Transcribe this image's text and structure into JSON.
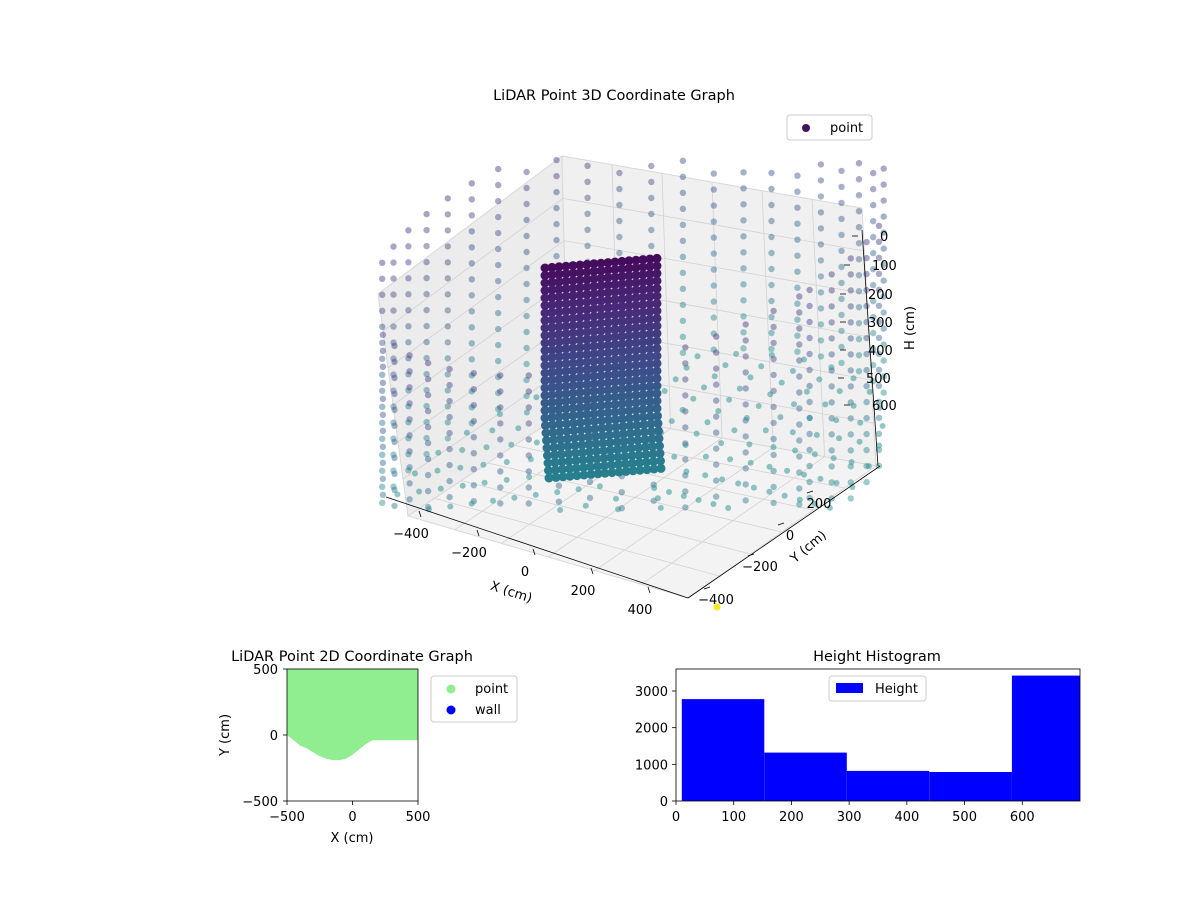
{
  "figure": {
    "colors": {
      "point_colormap": "viridis",
      "point_2d": "#90ee90",
      "wall": "#0000ff",
      "histogram": "#0000ff"
    }
  },
  "chart_data": [
    {
      "type": "scatter3d",
      "title": "LiDAR Point 3D Coordinate Graph",
      "xlabel": "X (cm)",
      "ylabel": "Y (cm)",
      "zlabel": "H (cm)",
      "xticks": [
        "−400",
        "−200",
        "0",
        "200",
        "400"
      ],
      "yticks": [
        "−400",
        "−200",
        "0",
        "200"
      ],
      "zticks": [
        "0",
        "100",
        "200",
        "300",
        "400",
        "500",
        "600"
      ],
      "z_inverted": true,
      "legend": {
        "entries": [
          "point"
        ],
        "placement": "top-right"
      },
      "colormap": "viridis",
      "series": [
        {
          "name": "point",
          "description": "cylindrical ring of LiDAR returns, radius ≈ 480 cm, height 0–600 cm, plus a dense wall patch near x ≈ −100 cm"
        }
      ]
    },
    {
      "type": "area",
      "title": "LiDAR Point 2D Coordinate Graph",
      "xlabel": "X (cm)",
      "ylabel": "Y (cm)",
      "xlim": [
        -500,
        500
      ],
      "ylim": [
        -500,
        500
      ],
      "xticks": [
        "−500",
        "0",
        "500"
      ],
      "yticks": [
        "500",
        "0",
        "−500"
      ],
      "legend": {
        "entries": [
          "point",
          "wall"
        ],
        "placement": "outside-right"
      },
      "boundary": {
        "x": [
          -500,
          -450,
          -400,
          -350,
          -300,
          -250,
          -200,
          -150,
          -100,
          -50,
          0,
          50,
          100,
          150,
          200,
          500
        ],
        "y": [
          0,
          -40,
          -80,
          -100,
          -130,
          -160,
          -180,
          -190,
          -190,
          -180,
          -150,
          -110,
          -70,
          -40,
          -40,
          -40
        ]
      },
      "series": [
        {
          "name": "point",
          "color": "#90ee90"
        },
        {
          "name": "wall",
          "color": "#0000ff"
        }
      ]
    },
    {
      "type": "bar",
      "title": "Height Histogram",
      "xlim": [
        0,
        700
      ],
      "ylim": [
        0,
        3600
      ],
      "xticks": [
        "0",
        "100",
        "200",
        "300",
        "400",
        "500",
        "600"
      ],
      "yticks": [
        "0",
        "1000",
        "2000",
        "3000"
      ],
      "legend": {
        "entries": [
          "Height"
        ],
        "placement": "top-center"
      },
      "bins": [
        {
          "x0": 10,
          "x1": 153,
          "value": 2780
        },
        {
          "x0": 153,
          "x1": 296,
          "value": 1320
        },
        {
          "x0": 296,
          "x1": 439,
          "value": 820
        },
        {
          "x0": 439,
          "x1": 582,
          "value": 790
        },
        {
          "x0": 582,
          "x1": 700,
          "value": 3420
        }
      ],
      "series": [
        {
          "name": "Height",
          "color": "#0000ff"
        }
      ]
    }
  ]
}
